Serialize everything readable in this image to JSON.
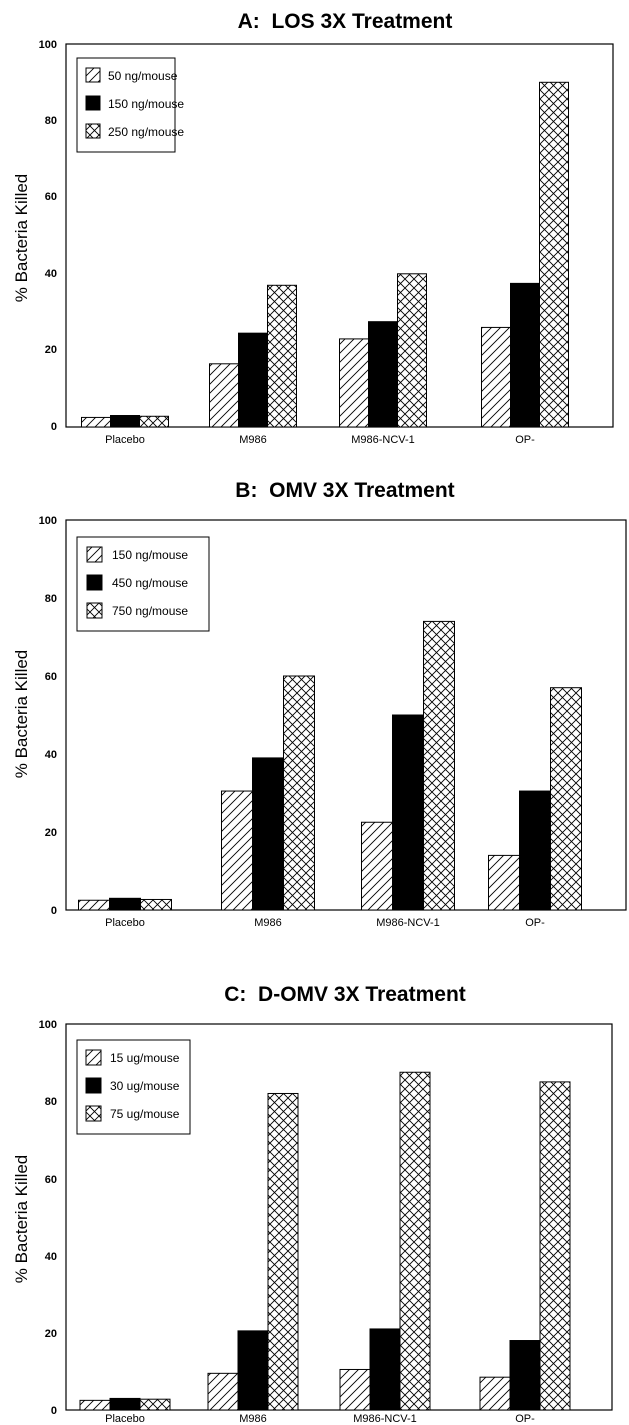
{
  "chart_data": [
    {
      "type": "bar",
      "title": "A:  LOS 3X Treatment",
      "ylabel": "% Bacteria Killed",
      "xlabel": "",
      "ylim": [
        0,
        100
      ],
      "yticks": [
        0,
        20,
        40,
        60,
        80,
        100
      ],
      "grid": false,
      "legend_position": "top-left",
      "categories": [
        "Placebo",
        "M986",
        "M986-NCV-1",
        "OP-"
      ],
      "series": [
        {
          "name": "50 ng/mouse",
          "pattern": "diagonal-hatch",
          "values": [
            2.5,
            16.5,
            23,
            26
          ]
        },
        {
          "name": "150 ng/mouse",
          "pattern": "solid-black",
          "values": [
            3,
            24.5,
            27.5,
            37.5
          ]
        },
        {
          "name": "250 ng/mouse",
          "pattern": "cross-hatch",
          "values": [
            2.8,
            37,
            40,
            90
          ]
        }
      ]
    },
    {
      "type": "bar",
      "title": "B:  OMV 3X Treatment",
      "ylabel": "% Bacteria Killed",
      "xlabel": "",
      "ylim": [
        0,
        100
      ],
      "yticks": [
        0,
        20,
        40,
        60,
        80,
        100
      ],
      "grid": false,
      "legend_position": "top-left",
      "categories": [
        "Placebo",
        "M986",
        "M986-NCV-1",
        "OP-"
      ],
      "series": [
        {
          "name": "150 ng/mouse",
          "pattern": "diagonal-hatch",
          "values": [
            2.5,
            30.5,
            22.5,
            14
          ]
        },
        {
          "name": "450 ng/mouse",
          "pattern": "solid-black",
          "values": [
            3,
            39,
            50,
            30.5
          ]
        },
        {
          "name": "750 ng/mouse",
          "pattern": "cross-hatch",
          "values": [
            2.7,
            60,
            74,
            57
          ]
        }
      ]
    },
    {
      "type": "bar",
      "title": "C:  D-OMV 3X Treatment",
      "ylabel": "% Bacteria Killed",
      "xlabel": "",
      "ylim": [
        0,
        100
      ],
      "yticks": [
        0,
        20,
        40,
        60,
        80,
        100
      ],
      "grid": false,
      "legend_position": "top-left",
      "categories": [
        "Placebo",
        "M986",
        "M986-NCV-1",
        "OP-"
      ],
      "series": [
        {
          "name": "15 ug/mouse",
          "pattern": "diagonal-hatch",
          "values": [
            2.5,
            9.5,
            10.5,
            8.5
          ]
        },
        {
          "name": "30 ug/mouse",
          "pattern": "solid-black",
          "values": [
            3,
            20.5,
            21,
            18
          ]
        },
        {
          "name": "75 ug/mouse",
          "pattern": "cross-hatch",
          "values": [
            2.8,
            82,
            87.5,
            85
          ]
        }
      ]
    }
  ]
}
